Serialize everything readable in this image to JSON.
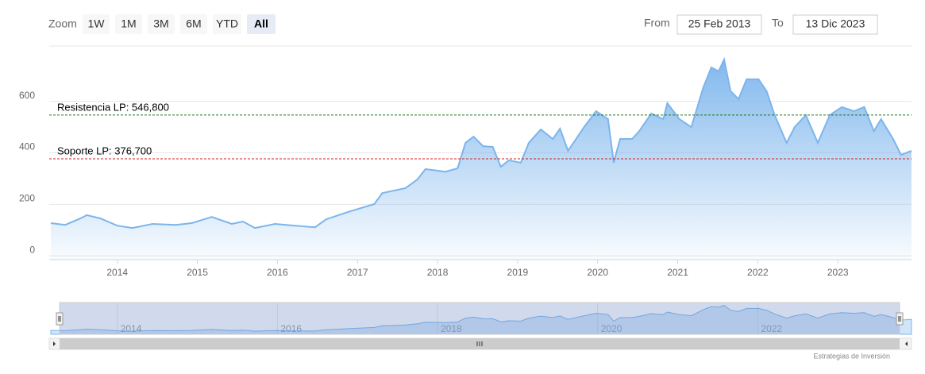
{
  "chart_data": {
    "type": "area",
    "range_selector": {
      "label": "Zoom",
      "buttons": [
        "1W",
        "1M",
        "3M",
        "6M",
        "YTD",
        "All"
      ],
      "selected": 5,
      "from_label": "From",
      "from": "25 Feb 2013",
      "to_label": "To",
      "to": "13 Dic 2023"
    },
    "series": [
      {
        "color": "#7cb5ec",
        "x": [
          2013.17,
          2013.35,
          2013.54,
          2013.62,
          2013.79,
          2014.0,
          2014.19,
          2014.44,
          2014.73,
          2014.93,
          2015.18,
          2015.43,
          2015.57,
          2015.72,
          2015.97,
          2016.22,
          2016.47,
          2016.61,
          2016.91,
          2017.21,
          2017.31,
          2017.6,
          2017.75,
          2017.85,
          2018.1,
          2018.25,
          2018.35,
          2018.45,
          2018.57,
          2018.69,
          2018.79,
          2018.89,
          2019.04,
          2019.14,
          2019.29,
          2019.44,
          2019.53,
          2019.63,
          2019.83,
          2019.98,
          2020.13,
          2020.2,
          2020.28,
          2020.43,
          2020.52,
          2020.67,
          2020.82,
          2020.87,
          2021.02,
          2021.17,
          2021.32,
          2021.42,
          2021.51,
          2021.58,
          2021.66,
          2021.76,
          2021.86,
          2022.01,
          2022.11,
          2022.21,
          2022.36,
          2022.46,
          2022.6,
          2022.75,
          2022.9,
          2023.05,
          2023.2,
          2023.33,
          2023.45,
          2023.54,
          2023.69,
          2023.79,
          2023.92
        ],
        "values": [
          127,
          120,
          145,
          158,
          145,
          117,
          108,
          124,
          120,
          127,
          151,
          124,
          133,
          108,
          124,
          117,
          111,
          142,
          173,
          201,
          244,
          263,
          297,
          337,
          327,
          340,
          439,
          463,
          426,
          423,
          346,
          371,
          362,
          439,
          491,
          454,
          494,
          408,
          500,
          562,
          531,
          362,
          454,
          454,
          485,
          553,
          531,
          593,
          531,
          500,
          655,
          732,
          717,
          763,
          640,
          609,
          686,
          686,
          640,
          547,
          439,
          500,
          547,
          439,
          547,
          578,
          562,
          578,
          485,
          531,
          454,
          392,
          408
        ]
      }
    ],
    "plot_lines": [
      {
        "label": "Resistencia LP: 546,800",
        "value": 546.8,
        "color": "#1a7a1a"
      },
      {
        "label": "Soporte LP: 376,700",
        "value": 376.7,
        "color": "#cc2222"
      }
    ],
    "xlim": [
      2013.15,
      2023.92
    ],
    "xticks": [
      2014,
      2015,
      2016,
      2017,
      2018,
      2019,
      2020,
      2021,
      2022,
      2023
    ],
    "ylim": [
      -15,
      815
    ],
    "yticks": [
      0,
      200,
      400,
      600
    ],
    "grid": true,
    "navigator_xticks": [
      2014,
      2016,
      2018,
      2020,
      2022
    ],
    "credits": "Estrategias de Inversión"
  }
}
